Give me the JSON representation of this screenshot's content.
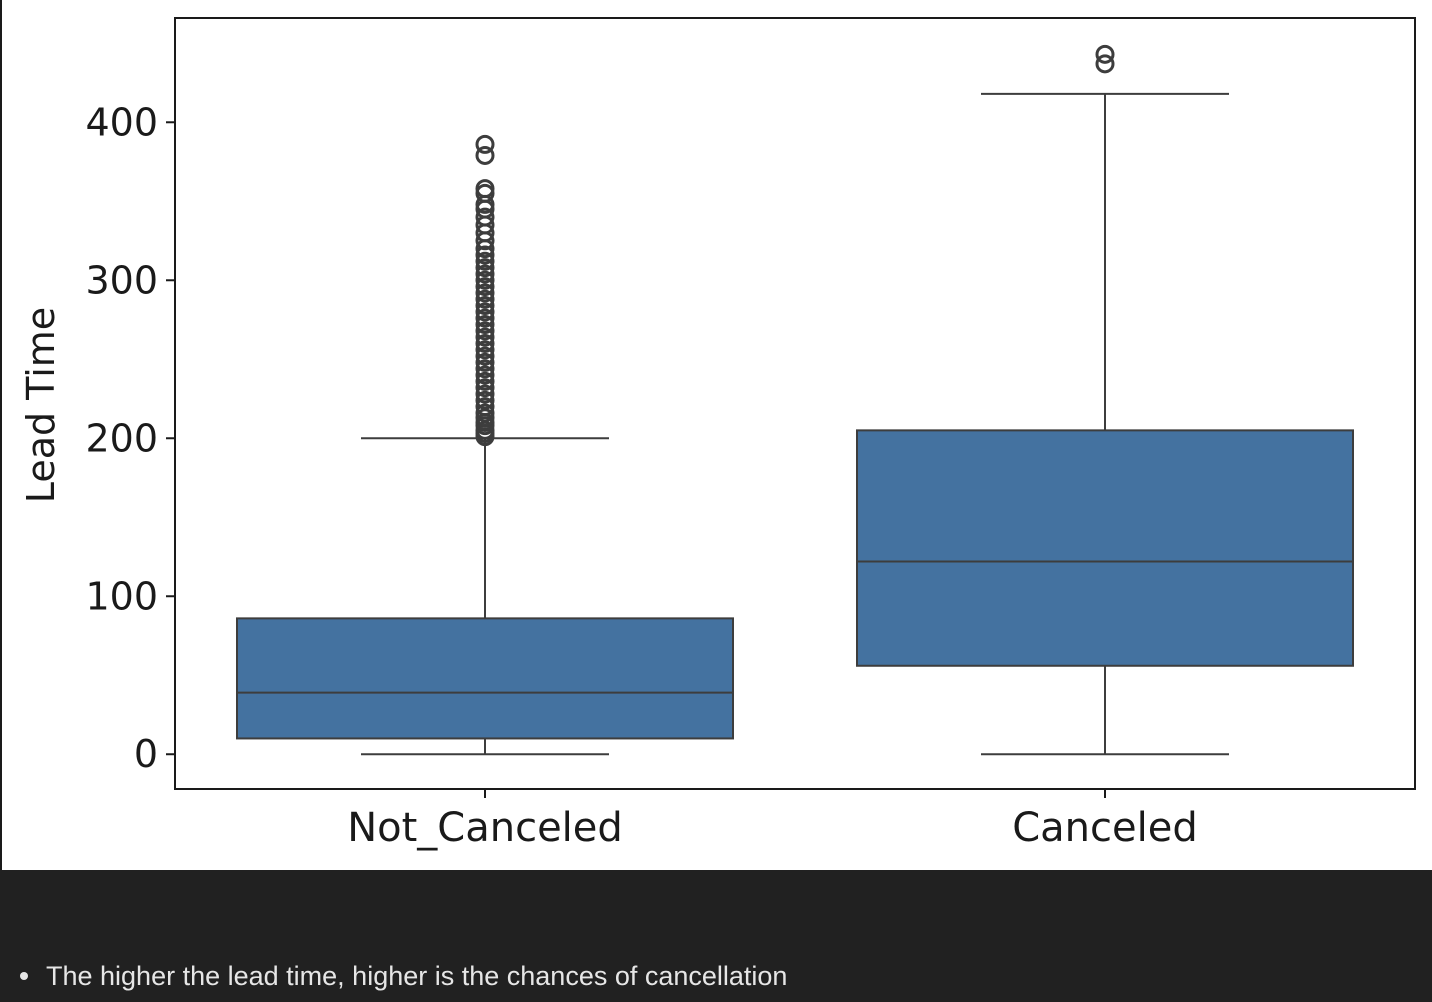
{
  "chart_data": {
    "type": "box",
    "title": "",
    "xlabel": "",
    "ylabel": "Lead Time",
    "ylim": [
      -22,
      466
    ],
    "yticks": [
      0,
      100,
      200,
      300,
      400
    ],
    "categories": [
      "Not_Canceled",
      "Canceled"
    ],
    "color": "#4472a0",
    "boxes": [
      {
        "category": "Not_Canceled",
        "whisker_low": 0,
        "q1": 10,
        "median": 39,
        "q3": 86,
        "whisker_high": 200,
        "outliers": [
          201,
          203,
          205,
          208,
          210,
          213,
          216,
          220,
          224,
          228,
          232,
          236,
          240,
          244,
          248,
          252,
          256,
          260,
          264,
          268,
          272,
          276,
          280,
          284,
          288,
          292,
          296,
          300,
          304,
          308,
          312,
          316,
          320,
          325,
          330,
          335,
          340,
          345,
          348,
          355,
          358,
          379,
          386
        ]
      },
      {
        "category": "Canceled",
        "whisker_low": 0,
        "q1": 56,
        "median": 122,
        "q3": 205,
        "whisker_high": 418,
        "outliers": [
          437,
          443
        ]
      }
    ],
    "grid": false,
    "legend": "none"
  },
  "notes": {
    "items": [
      "The higher the lead time, higher is the chances of cancellation"
    ]
  }
}
